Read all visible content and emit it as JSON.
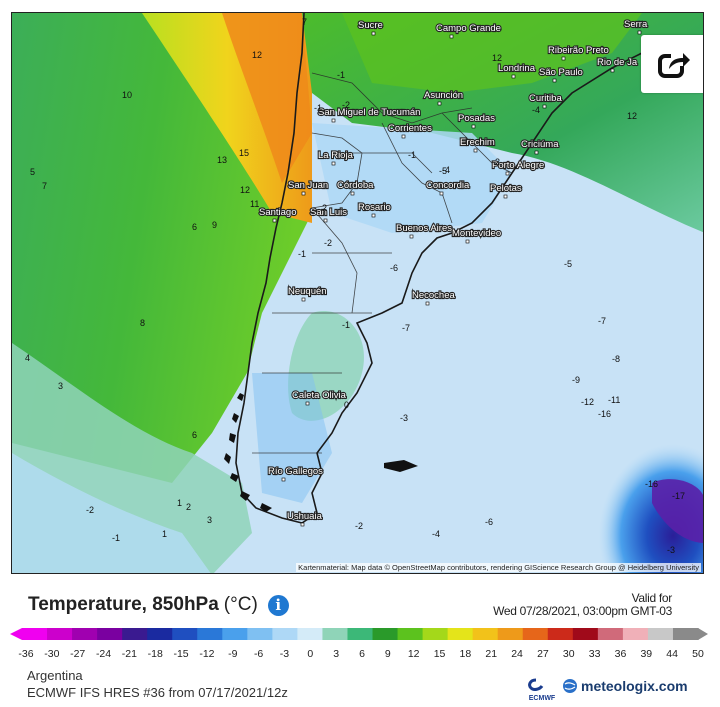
{
  "map": {
    "attribution": "Kartenmaterial: Map data © OpenStreetMap contributors, rendering GIScience Research Group @ Heidelberg University",
    "cities": [
      {
        "name": "Sucre"
      },
      {
        "name": "Campo Grande"
      },
      {
        "name": "Ribeirão Preto"
      },
      {
        "name": "Serra"
      },
      {
        "name": "Londrina"
      },
      {
        "name": "São Paulo"
      },
      {
        "name": "Rio de Ja"
      },
      {
        "name": "Curitiba"
      },
      {
        "name": "Asunción"
      },
      {
        "name": "San Miguel de Tucumán"
      },
      {
        "name": "Posadas"
      },
      {
        "name": "Corrientes"
      },
      {
        "name": "Erechim"
      },
      {
        "name": "Criciúma"
      },
      {
        "name": "La Rioja"
      },
      {
        "name": "Porto Alegre"
      },
      {
        "name": "San Juan"
      },
      {
        "name": "Córdoba"
      },
      {
        "name": "Concordia"
      },
      {
        "name": "Pelotas"
      },
      {
        "name": "Santiago"
      },
      {
        "name": "San Luis"
      },
      {
        "name": "Rosario"
      },
      {
        "name": "Buenos Aires"
      },
      {
        "name": "Montevideo"
      },
      {
        "name": "Neuquén"
      },
      {
        "name": "Necochea"
      },
      {
        "name": "Caleta Olivia"
      },
      {
        "name": "Río Gallegos"
      },
      {
        "name": "Ushuaia"
      }
    ],
    "isotherm_labels": [
      "7",
      "12",
      "10",
      "13",
      "15",
      "5",
      "7",
      "12",
      "11",
      "9",
      "6",
      "8",
      "4",
      "3",
      "6",
      "2",
      "1",
      "-2",
      "-1",
      "2",
      "1",
      "3",
      "-1",
      "-2",
      "-1",
      "0",
      "-6",
      "-7",
      "-4",
      "-2",
      "-3",
      "-5",
      "-7",
      "-8",
      "-9",
      "-11",
      "-12",
      "-16",
      "-16",
      "-17",
      "-3",
      "-6",
      "-4",
      "-2",
      "-5",
      "-1",
      "12",
      "12",
      "-1",
      "-2",
      "-1",
      "-4"
    ]
  },
  "header": {
    "title": "Temperature, 850hPa",
    "unit": "(°C)",
    "valid_for_label": "Valid for",
    "valid_time": "Wed 07/28/2021, 03:00pm GMT-03"
  },
  "scale": {
    "labels": [
      "-36",
      "-30",
      "-27",
      "-24",
      "-21",
      "-18",
      "-15",
      "-12",
      "-9",
      "-6",
      "-3",
      "0",
      "3",
      "6",
      "9",
      "12",
      "15",
      "18",
      "21",
      "24",
      "27",
      "30",
      "33",
      "36",
      "39",
      "44",
      "50"
    ],
    "colors": [
      "#f000f0",
      "#cc00cc",
      "#a000b0",
      "#7a00a0",
      "#3a1a90",
      "#1a2aa0",
      "#1f4fc0",
      "#2a78d8",
      "#4aa0ec",
      "#7fc0f2",
      "#aed8f6",
      "#d4ebf8",
      "#8fd4b8",
      "#3cb878",
      "#2a9a2a",
      "#5cc21e",
      "#a4d81a",
      "#e4e41a",
      "#f2c21a",
      "#ee9a1a",
      "#e6661a",
      "#cc2a1a",
      "#a00a1a",
      "#d06a7a",
      "#f0b0b8",
      "#c8c8c8",
      "#8a8a8a"
    ]
  },
  "footer": {
    "region": "Argentina",
    "model": "ECMWF IFS HRES #36 from 07/17/2021/12z",
    "ecmwf_label": "ECMWF",
    "brand": "meteologix.com"
  }
}
